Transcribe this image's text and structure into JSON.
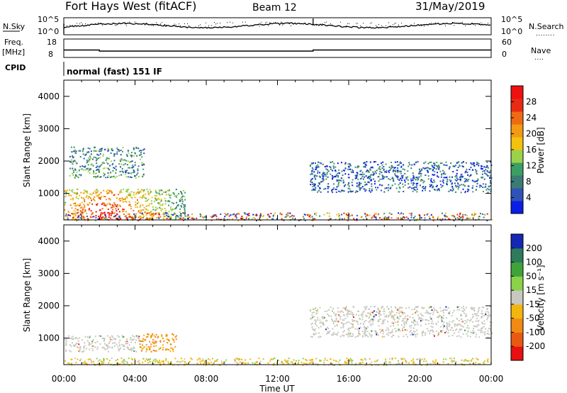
{
  "header": {
    "station": "Fort Hays West (fitACF)",
    "beam": "Beam 12",
    "date": "31/May/2019"
  },
  "strips": {
    "nsky_label": "N.Sky",
    "nsearch_label": "N.Search",
    "nsearch_legend": "........",
    "nsky_ticks": [
      "10^5",
      "10^0"
    ],
    "nsearch_ticks": [
      "10^5",
      "10^0"
    ],
    "freq_label": "Freq.",
    "freq_unit": "[MHz]",
    "freq_ticks": [
      "18",
      "8"
    ],
    "nave_label": "Nave",
    "nave_legend": "....",
    "nave_ticks": [
      "60",
      "0"
    ],
    "cpid_label": "CPID",
    "cpid_text": "normal (fast) 151 IF"
  },
  "chart_data": [
    {
      "type": "heatmap",
      "panel": "power",
      "ylabel": "Slant Range [km]",
      "yticks": [
        "1000",
        "2000",
        "3000",
        "4000"
      ],
      "ylim": [
        180,
        4500
      ],
      "xlim_hours": [
        0,
        24
      ],
      "colorbar": {
        "label": "Power [dB]",
        "ticks": [
          "4",
          "8",
          "12",
          "16",
          "20",
          "24",
          "28"
        ],
        "colors": [
          "#0a1ee6",
          "#2f52b8",
          "#3a7c74",
          "#3b9e63",
          "#9bd24a",
          "#f2c20e",
          "#f39a12",
          "#ef6a12",
          "#e82a12",
          "#f01010"
        ]
      },
      "regions": [
        {
          "t0": 0.0,
          "t1": 6.8,
          "r0": 200,
          "r1": 1150,
          "level": "high"
        },
        {
          "t0": 0.3,
          "t1": 4.5,
          "r0": 1500,
          "r1": 2450,
          "level": "mid"
        },
        {
          "t0": 0.0,
          "t1": 24.0,
          "r0": 180,
          "r1": 420,
          "level": "mixed"
        },
        {
          "t0": 13.8,
          "t1": 24.0,
          "r0": 1050,
          "r1": 2000,
          "level": "low"
        }
      ]
    },
    {
      "type": "heatmap",
      "panel": "velocity",
      "ylabel": "Slant Range [km]",
      "yticks": [
        "1000",
        "2000",
        "3000",
        "4000"
      ],
      "ylim": [
        180,
        4500
      ],
      "xlim_hours": [
        0,
        24
      ],
      "xticks": [
        "00:00",
        "04:00",
        "08:00",
        "12:00",
        "16:00",
        "20:00",
        "00:00"
      ],
      "xlabel": "Time UT",
      "colorbar": {
        "label": "Velocity [m s⁻¹]",
        "ticks": [
          "200",
          "100",
          "50",
          "15",
          "-15",
          "-50",
          "-100",
          "-200"
        ],
        "colors": [
          "#1428b4",
          "#2e7a5a",
          "#3ea33a",
          "#8ad24a",
          "#c8c8c0",
          "#f2b60e",
          "#f08a12",
          "#e85a12",
          "#e81010"
        ]
      },
      "regions": [
        {
          "t0": 0.0,
          "t1": 4.2,
          "r0": 600,
          "r1": 1100,
          "level": "grey"
        },
        {
          "t0": 4.2,
          "t1": 6.3,
          "r0": 600,
          "r1": 1150,
          "level": "orange"
        },
        {
          "t0": 0.0,
          "t1": 24.0,
          "r0": 180,
          "r1": 400,
          "level": "orange-green"
        },
        {
          "t0": 13.8,
          "t1": 24.0,
          "r0": 1050,
          "r1": 2000,
          "level": "grey"
        }
      ]
    }
  ]
}
